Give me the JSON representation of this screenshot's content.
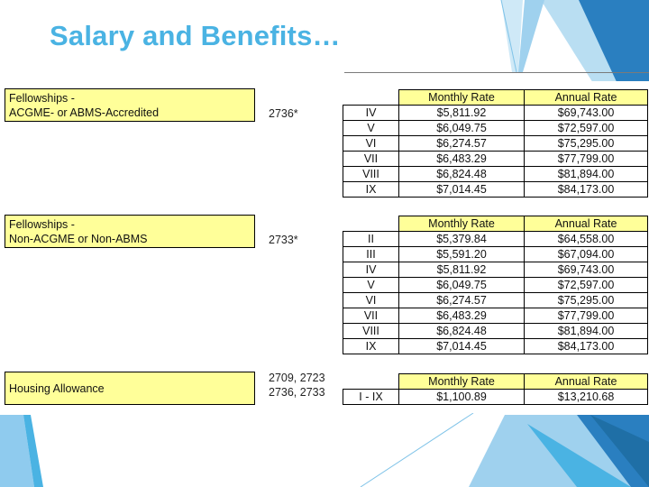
{
  "title": "Salary and Benefits…",
  "colors": {
    "title": "#4ab3e3",
    "highlight": "#ffff99",
    "accent": "#4ab3e3",
    "accent_dark": "#1f6fa6"
  },
  "groups": [
    {
      "label_lines": [
        "Fellowships -",
        "ACGME- or ABMS-Accredited"
      ],
      "code_lines": [
        "2736*"
      ],
      "headers": [
        "",
        "Monthly Rate",
        "Annual Rate"
      ],
      "rows": [
        {
          "step": "IV",
          "monthly": "$5,811.92",
          "annual": "$69,743.00"
        },
        {
          "step": "V",
          "monthly": "$6,049.75",
          "annual": "$72,597.00"
        },
        {
          "step": "VI",
          "monthly": "$6,274.57",
          "annual": "$75,295.00"
        },
        {
          "step": "VII",
          "monthly": "$6,483.29",
          "annual": "$77,799.00"
        },
        {
          "step": "VIII",
          "monthly": "$6,824.48",
          "annual": "$81,894.00"
        },
        {
          "step": "IX",
          "monthly": "$7,014.45",
          "annual": "$84,173.00"
        }
      ]
    },
    {
      "label_lines": [
        "Fellowships -",
        "Non-ACGME or Non-ABMS"
      ],
      "code_lines": [
        "2733*"
      ],
      "headers": [
        "",
        "Monthly Rate",
        "Annual Rate"
      ],
      "rows": [
        {
          "step": "II",
          "monthly": "$5,379.84",
          "annual": "$64,558.00"
        },
        {
          "step": "III",
          "monthly": "$5,591.20",
          "annual": "$67,094.00"
        },
        {
          "step": "IV",
          "monthly": "$5,811.92",
          "annual": "$69,743.00"
        },
        {
          "step": "V",
          "monthly": "$6,049.75",
          "annual": "$72,597.00"
        },
        {
          "step": "VI",
          "monthly": "$6,274.57",
          "annual": "$75,295.00"
        },
        {
          "step": "VII",
          "monthly": "$6,483.29",
          "annual": "$77,799.00"
        },
        {
          "step": "VIII",
          "monthly": "$6,824.48",
          "annual": "$81,894.00"
        },
        {
          "step": "IX",
          "monthly": "$7,014.45",
          "annual": "$84,173.00"
        }
      ]
    },
    {
      "label_lines": [
        "Housing Allowance"
      ],
      "code_lines": [
        "2709, 2723",
        "2736, 2733"
      ],
      "headers": [
        "",
        "Monthly Rate",
        "Annual Rate"
      ],
      "rows": [
        {
          "step": "I - IX",
          "monthly": "$1,100.89",
          "annual": "$13,210.68"
        }
      ]
    }
  ]
}
